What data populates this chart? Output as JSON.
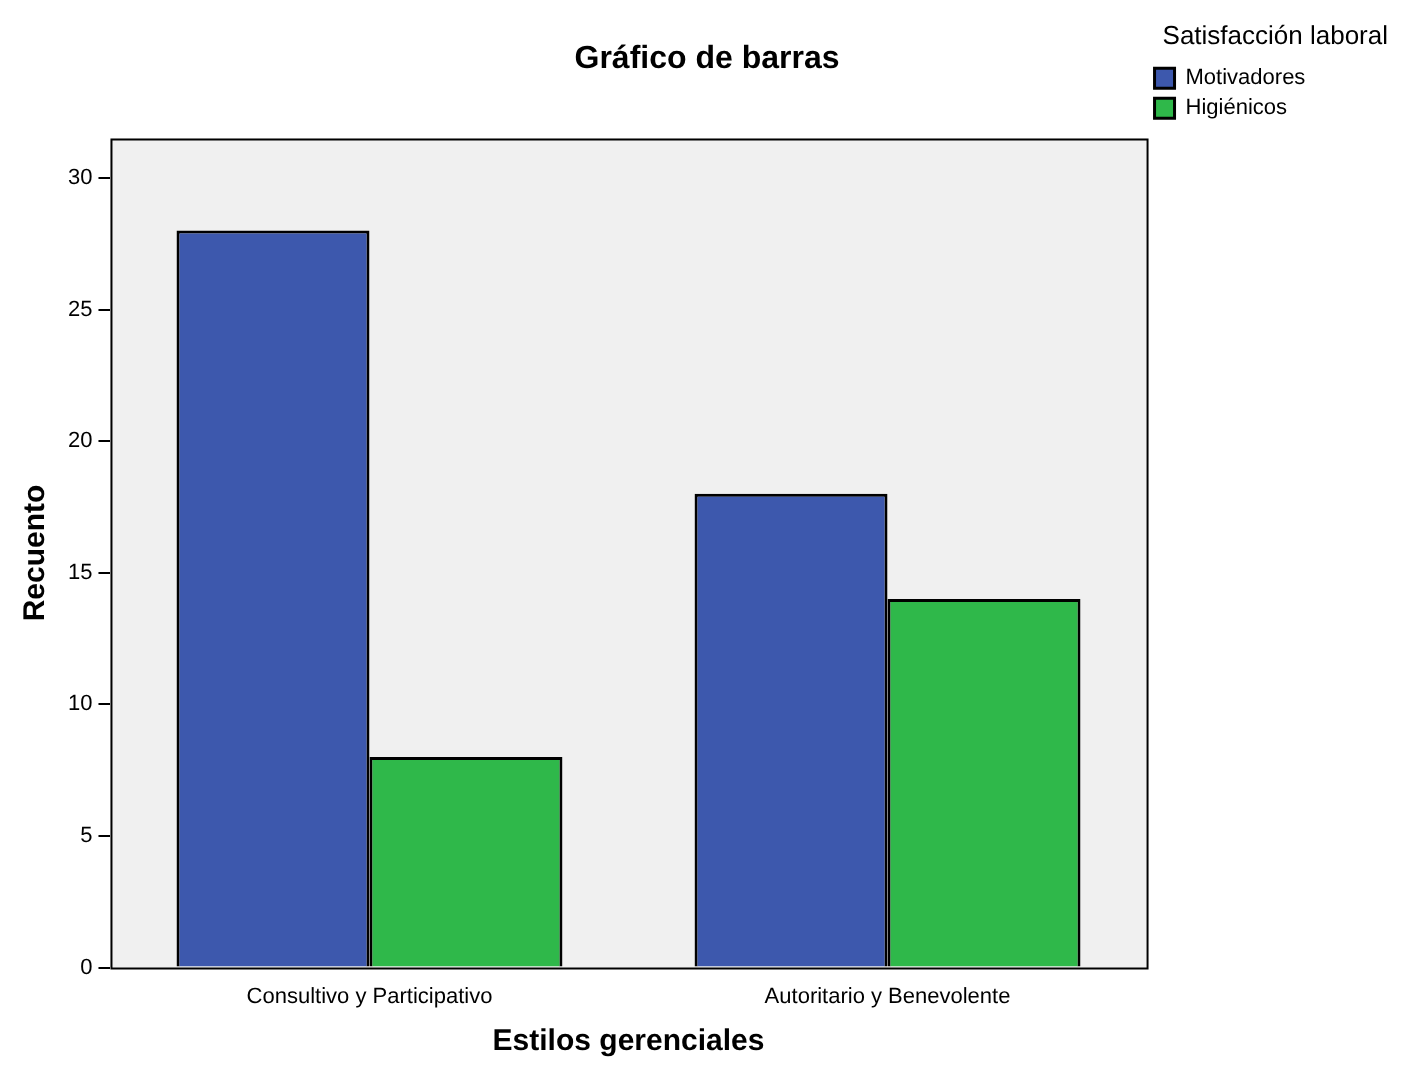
{
  "chart_data": {
    "type": "bar",
    "title": "Gráfico de barras",
    "xlabel": "Estilos gerenciales",
    "ylabel": "Recuento",
    "legend_title": "Satisfacción laboral",
    "categories": [
      "Consultivo y Participativo",
      "Autoritario y Benevolente"
    ],
    "series": [
      {
        "name": "Motivadores",
        "color": "#3d58ad",
        "values": [
          28,
          18
        ]
      },
      {
        "name": "Higiénicos",
        "color": "#2fb84a",
        "values": [
          8,
          14
        ]
      }
    ],
    "ylim": [
      0,
      31.5
    ],
    "yticks": [
      0,
      5,
      10,
      15,
      20,
      25,
      30
    ],
    "grid": false,
    "legend": "top right"
  }
}
